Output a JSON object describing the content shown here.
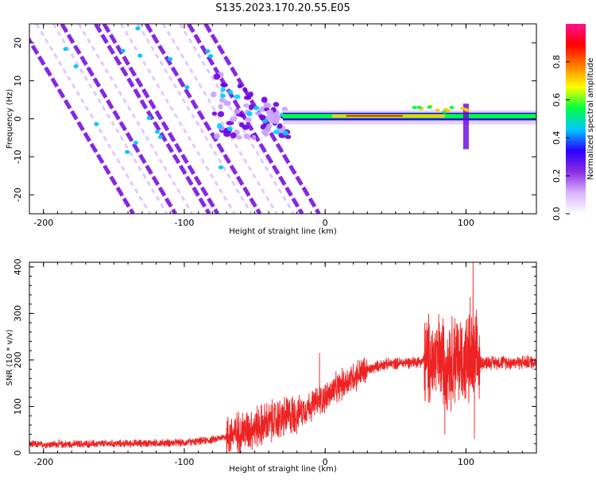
{
  "figure_title": "S135.2023.170.20.55.E05",
  "chart_data": [
    {
      "type": "heatmap",
      "title": "S135.2023.170.20.55.E05",
      "xlabel": "Height of straight line (km)",
      "ylabel": "Frequency (Hz)",
      "xlim": [
        -210,
        150
      ],
      "ylim": [
        -25,
        25
      ],
      "x_ticks": [
        -200,
        -100,
        0,
        100
      ],
      "y_ticks": [
        -20,
        -10,
        0,
        10,
        20
      ],
      "grid": false,
      "colorbar": {
        "label": "Normalized spectral amplitude",
        "range": [
          0,
          1
        ],
        "ticks": [
          0.0,
          0.2,
          0.4,
          0.6,
          0.8
        ],
        "colormap": [
          "#ffffff",
          "#d9b3ff",
          "#8a2be2",
          "#2a00ff",
          "#00c8ff",
          "#00ff40",
          "#ffff00",
          "#ff8000",
          "#ff0000",
          "#ff1090"
        ]
      },
      "features": {
        "diagonal_stripe_starts_km": [
          -215,
          -205,
          -195,
          -185,
          -175,
          -165,
          -155,
          -145,
          -135,
          -125,
          -115,
          -105,
          -95,
          -85
        ],
        "stripe_slope_hz_per_km": -0.62,
        "scatter_region_km": [
          -80,
          -25
        ],
        "carrier_band": {
          "x": [
            -30,
            150
          ],
          "frequency_hz": 1.0,
          "notch_km": 100
        }
      }
    },
    {
      "type": "line",
      "xlabel": "Height of straight line (km)",
      "ylabel": "SNR (10 * v/v)",
      "xlim": [
        -210,
        150
      ],
      "ylim": [
        0,
        410
      ],
      "x_ticks": [
        -200,
        -100,
        0,
        100
      ],
      "y_ticks": [
        0,
        100,
        200,
        300,
        400
      ],
      "grid": false,
      "line_color": "#ee2222",
      "trend": {
        "x": [
          -210,
          -150,
          -100,
          -80,
          -60,
          -40,
          -20,
          0,
          20,
          40,
          60,
          80,
          95,
          105,
          110,
          150
        ],
        "y": [
          18,
          20,
          22,
          28,
          45,
          65,
          85,
          120,
          165,
          190,
          195,
          200,
          200,
          195,
          195,
          195
        ]
      },
      "noise_amplitude": [
        {
          "x": [
            -210,
            -70
          ],
          "amp": 10
        },
        {
          "x": [
            -70,
            -20
          ],
          "amp": 55
        },
        {
          "x": [
            -20,
            30
          ],
          "amp": 40
        },
        {
          "x": [
            30,
            70
          ],
          "amp": 15
        },
        {
          "x": [
            70,
            110
          ],
          "amp": 120
        },
        {
          "x": [
            110,
            150
          ],
          "amp": 18
        }
      ],
      "spikes": [
        {
          "x": 103,
          "y": 335
        },
        {
          "x": 105,
          "y": 410
        },
        {
          "x": 106,
          "y": 30
        },
        {
          "x": 100,
          "y": 270
        },
        {
          "x": 92,
          "y": 290
        },
        {
          "x": 85,
          "y": 40
        },
        {
          "x": -4,
          "y": 215
        }
      ]
    }
  ]
}
